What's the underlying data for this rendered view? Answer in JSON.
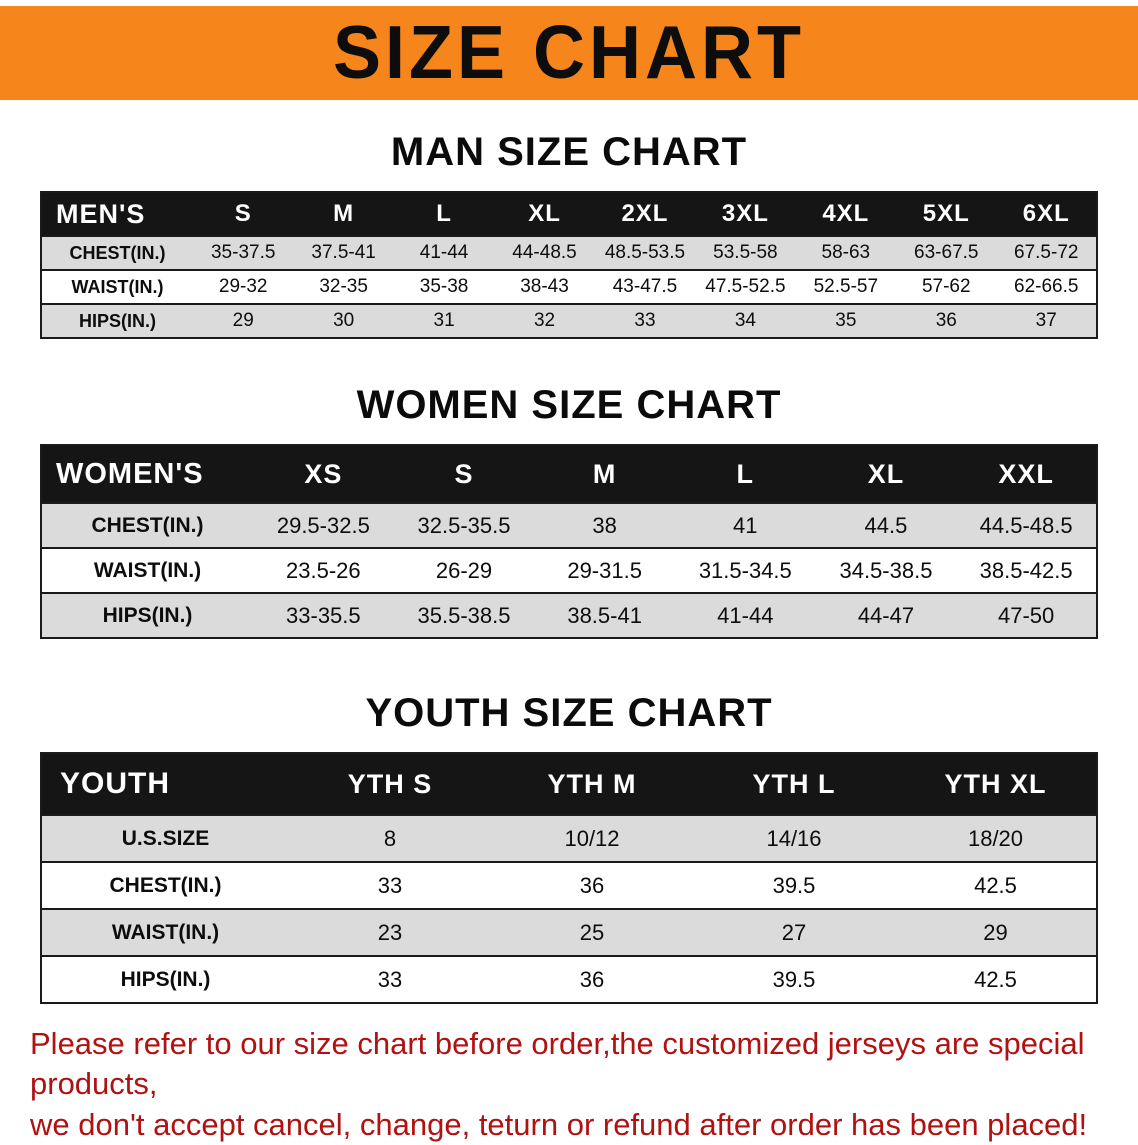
{
  "banner": {
    "title": "SIZE CHART"
  },
  "colors": {
    "banner_bg": "#F6861B",
    "table_header_bg": "#151515",
    "row_gray": "#DBDBDB",
    "note_red": "#B01212"
  },
  "sections": {
    "men": {
      "heading": "MAN SIZE CHART",
      "header": [
        "MEN'S",
        "S",
        "M",
        "L",
        "XL",
        "2XL",
        "3XL",
        "4XL",
        "5XL",
        "6XL"
      ],
      "rows": [
        {
          "label": "CHEST(IN.)",
          "values": [
            "35-37.5",
            "37.5-41",
            "41-44",
            "44-48.5",
            "48.5-53.5",
            "53.5-58",
            "58-63",
            "63-67.5",
            "67.5-72"
          ]
        },
        {
          "label": "WAIST(IN.)",
          "values": [
            "29-32",
            "32-35",
            "35-38",
            "38-43",
            "43-47.5",
            "47.5-52.5",
            "52.5-57",
            "57-62",
            "62-66.5"
          ]
        },
        {
          "label": "HIPS(IN.)",
          "values": [
            "29",
            "30",
            "31",
            "32",
            "33",
            "34",
            "35",
            "36",
            "37"
          ]
        }
      ]
    },
    "women": {
      "heading": "WOMEN SIZE CHART",
      "header": [
        "WOMEN'S",
        "XS",
        "S",
        "M",
        "L",
        "XL",
        "XXL"
      ],
      "rows": [
        {
          "label": "CHEST(IN.)",
          "values": [
            "29.5-32.5",
            "32.5-35.5",
            "38",
            "41",
            "44.5",
            "44.5-48.5"
          ]
        },
        {
          "label": "WAIST(IN.)",
          "values": [
            "23.5-26",
            "26-29",
            "29-31.5",
            "31.5-34.5",
            "34.5-38.5",
            "38.5-42.5"
          ]
        },
        {
          "label": "HIPS(IN.)",
          "values": [
            "33-35.5",
            "35.5-38.5",
            "38.5-41",
            "41-44",
            "44-47",
            "47-50"
          ]
        }
      ]
    },
    "youth": {
      "heading": "YOUTH SIZE CHART",
      "header": [
        "YOUTH",
        "YTH S",
        "YTH M",
        "YTH L",
        "YTH XL"
      ],
      "rows": [
        {
          "label": "U.S.SIZE",
          "values": [
            "8",
            "10/12",
            "14/16",
            "18/20"
          ]
        },
        {
          "label": "CHEST(IN.)",
          "values": [
            "33",
            "36",
            "39.5",
            "42.5"
          ]
        },
        {
          "label": "WAIST(IN.)",
          "values": [
            "23",
            "25",
            "27",
            "29"
          ]
        },
        {
          "label": "HIPS(IN.)",
          "values": [
            "33",
            "36",
            "39.5",
            "42.5"
          ]
        }
      ]
    }
  },
  "footer": {
    "line1": "Please refer to our size chart before order,the customized jerseys are special products,",
    "line2": "we don't accept cancel, change, teturn or refund after order has been placed!"
  }
}
